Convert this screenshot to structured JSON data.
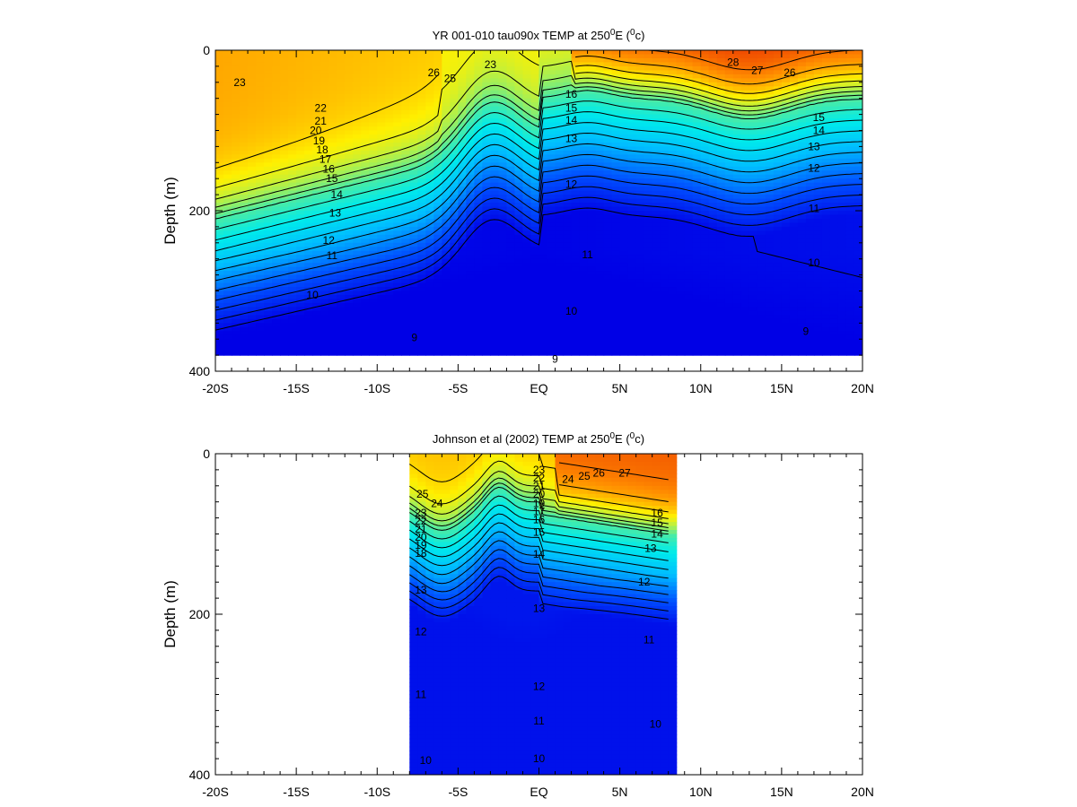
{
  "chart_data": [
    {
      "type": "heatmap",
      "title": "YR 001-010 tau090x TEMP at 250",
      "title_sup1": "0",
      "title_mid": "E (",
      "title_sup2": "0",
      "title_end": "c)",
      "ylabel": "Depth (m)",
      "xlim": [
        -20,
        20
      ],
      "ylim": [
        0,
        400
      ],
      "y_inverted": true,
      "x_tick_labels": [
        "-20S",
        "-15S",
        "-10S",
        "-5S",
        "EQ",
        "5N",
        "10N",
        "15N",
        "20N"
      ],
      "y_tick_labels": [
        "0",
        "200",
        "400"
      ],
      "data_xrange": [
        -20,
        20
      ],
      "data_max_depth": 380,
      "contour_labels": [
        {
          "text": "23",
          "x": -18.5,
          "y": 40
        },
        {
          "text": "26",
          "x": -6.5,
          "y": 28
        },
        {
          "text": "25",
          "x": -5.5,
          "y": 35
        },
        {
          "text": "23",
          "x": -3,
          "y": 18
        },
        {
          "text": "22",
          "x": -13.5,
          "y": 72
        },
        {
          "text": "21",
          "x": -13.5,
          "y": 88
        },
        {
          "text": "20",
          "x": -13.8,
          "y": 100
        },
        {
          "text": "19",
          "x": -13.6,
          "y": 113
        },
        {
          "text": "18",
          "x": -13.4,
          "y": 124
        },
        {
          "text": "17",
          "x": -13.2,
          "y": 136
        },
        {
          "text": "16",
          "x": -13.0,
          "y": 148
        },
        {
          "text": "15",
          "x": -12.8,
          "y": 160
        },
        {
          "text": "14",
          "x": -12.5,
          "y": 180
        },
        {
          "text": "13",
          "x": -12.6,
          "y": 203
        },
        {
          "text": "12",
          "x": -13.0,
          "y": 237
        },
        {
          "text": "11",
          "x": -12.8,
          "y": 256
        },
        {
          "text": "10",
          "x": -14.0,
          "y": 305
        },
        {
          "text": "9",
          "x": -7.7,
          "y": 358
        },
        {
          "text": "16",
          "x": 2,
          "y": 55
        },
        {
          "text": "15",
          "x": 2,
          "y": 72
        },
        {
          "text": "14",
          "x": 2,
          "y": 87
        },
        {
          "text": "13",
          "x": 2,
          "y": 110
        },
        {
          "text": "12",
          "x": 2,
          "y": 167
        },
        {
          "text": "11",
          "x": 3,
          "y": 255
        },
        {
          "text": "10",
          "x": 2,
          "y": 325
        },
        {
          "text": "9",
          "x": 1,
          "y": 385
        },
        {
          "text": "28",
          "x": 12,
          "y": 15
        },
        {
          "text": "27",
          "x": 13.5,
          "y": 25
        },
        {
          "text": "26",
          "x": 15.5,
          "y": 28
        },
        {
          "text": "15",
          "x": 17.3,
          "y": 84
        },
        {
          "text": "14",
          "x": 17.3,
          "y": 100
        },
        {
          "text": "13",
          "x": 17,
          "y": 120
        },
        {
          "text": "12",
          "x": 17,
          "y": 147
        },
        {
          "text": "11",
          "x": 17,
          "y": 197
        },
        {
          "text": "10",
          "x": 17,
          "y": 265
        },
        {
          "text": "9",
          "x": 16.5,
          "y": 350
        }
      ]
    },
    {
      "type": "heatmap",
      "title": "Johnson et al (2002) TEMP at 250",
      "title_sup1": "0",
      "title_mid": "E (",
      "title_sup2": "0",
      "title_end": "c)",
      "ylabel": "Depth (m)",
      "xlim": [
        -20,
        20
      ],
      "ylim": [
        0,
        400
      ],
      "y_inverted": true,
      "x_tick_labels": [
        "-20S",
        "-15S",
        "-10S",
        "-5S",
        "EQ",
        "5N",
        "10N",
        "15N",
        "20N"
      ],
      "y_tick_labels": [
        "0",
        "200",
        "400"
      ],
      "data_xrange": [
        -8,
        8.2
      ],
      "data_max_depth": 400,
      "contour_labels": [
        {
          "text": "25",
          "x": -7.2,
          "y": 50
        },
        {
          "text": "24",
          "x": -6.3,
          "y": 62
        },
        {
          "text": "23",
          "x": -7.3,
          "y": 74
        },
        {
          "text": "22",
          "x": -7.3,
          "y": 84
        },
        {
          "text": "21",
          "x": -7.3,
          "y": 94
        },
        {
          "text": "20",
          "x": -7.3,
          "y": 104
        },
        {
          "text": "19",
          "x": -7.3,
          "y": 114
        },
        {
          "text": "18",
          "x": -7.3,
          "y": 124
        },
        {
          "text": "13",
          "x": -7.3,
          "y": 170
        },
        {
          "text": "12",
          "x": -7.3,
          "y": 222
        },
        {
          "text": "11",
          "x": -7.3,
          "y": 300
        },
        {
          "text": "10",
          "x": -7.0,
          "y": 382
        },
        {
          "text": "23",
          "x": 0,
          "y": 20
        },
        {
          "text": "22",
          "x": 0,
          "y": 30
        },
        {
          "text": "21",
          "x": 0,
          "y": 40
        },
        {
          "text": "20",
          "x": 0,
          "y": 50
        },
        {
          "text": "19",
          "x": 0,
          "y": 62
        },
        {
          "text": "17",
          "x": 0,
          "y": 72
        },
        {
          "text": "16",
          "x": 0,
          "y": 82
        },
        {
          "text": "15",
          "x": 0,
          "y": 98
        },
        {
          "text": "14",
          "x": 0,
          "y": 125
        },
        {
          "text": "13",
          "x": 0,
          "y": 193
        },
        {
          "text": "12",
          "x": 0,
          "y": 290
        },
        {
          "text": "11",
          "x": 0,
          "y": 333
        },
        {
          "text": "10",
          "x": 0,
          "y": 380
        },
        {
          "text": "24",
          "x": 1.8,
          "y": 32
        },
        {
          "text": "25",
          "x": 2.8,
          "y": 28
        },
        {
          "text": "26",
          "x": 3.7,
          "y": 24
        },
        {
          "text": "27",
          "x": 5.3,
          "y": 24
        },
        {
          "text": "13",
          "x": 6.9,
          "y": 118
        },
        {
          "text": "12",
          "x": 6.5,
          "y": 160
        },
        {
          "text": "11",
          "x": 6.8,
          "y": 232
        },
        {
          "text": "10",
          "x": 7.2,
          "y": 337
        },
        {
          "text": "14",
          "x": 7.3,
          "y": 100
        },
        {
          "text": "15",
          "x": 7.3,
          "y": 86
        },
        {
          "text": "16",
          "x": 7.3,
          "y": 74
        }
      ]
    }
  ]
}
